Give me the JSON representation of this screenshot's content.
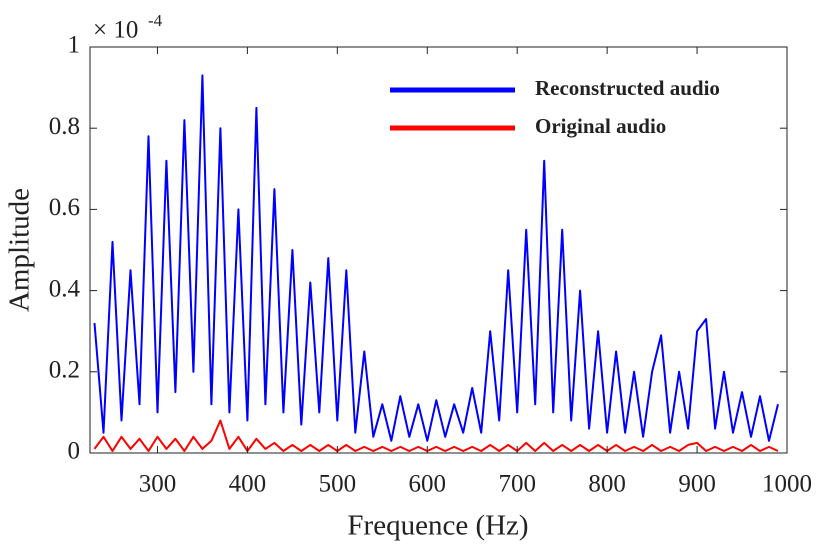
{
  "chart_data": {
    "type": "line",
    "xlabel": "Frequence (Hz)",
    "ylabel": "Amplitude",
    "y_multiplier": "× 10",
    "y_multiplier_exponent": "-4",
    "x": [
      230,
      240,
      250,
      260,
      270,
      280,
      290,
      300,
      310,
      320,
      330,
      340,
      350,
      360,
      370,
      380,
      390,
      400,
      410,
      420,
      430,
      440,
      450,
      460,
      470,
      480,
      490,
      500,
      510,
      520,
      530,
      540,
      550,
      560,
      570,
      580,
      590,
      600,
      610,
      620,
      630,
      640,
      650,
      660,
      670,
      680,
      690,
      700,
      710,
      720,
      730,
      740,
      750,
      760,
      770,
      780,
      790,
      800,
      810,
      820,
      830,
      840,
      850,
      860,
      870,
      880,
      890,
      900,
      910,
      920,
      930,
      940,
      950,
      960,
      970,
      980,
      990
    ],
    "series": [
      {
        "name": "Reconstructed audio",
        "color": "#0000ff",
        "values": [
          0.32,
          0.05,
          0.52,
          0.08,
          0.45,
          0.12,
          0.78,
          0.1,
          0.72,
          0.15,
          0.82,
          0.2,
          0.93,
          0.12,
          0.8,
          0.1,
          0.6,
          0.08,
          0.85,
          0.12,
          0.65,
          0.1,
          0.5,
          0.07,
          0.42,
          0.1,
          0.48,
          0.08,
          0.45,
          0.05,
          0.25,
          0.04,
          0.12,
          0.03,
          0.14,
          0.04,
          0.12,
          0.03,
          0.13,
          0.04,
          0.12,
          0.05,
          0.16,
          0.05,
          0.3,
          0.08,
          0.45,
          0.1,
          0.55,
          0.12,
          0.72,
          0.1,
          0.55,
          0.08,
          0.4,
          0.06,
          0.3,
          0.05,
          0.25,
          0.05,
          0.2,
          0.04,
          0.2,
          0.29,
          0.05,
          0.2,
          0.06,
          0.3,
          0.33,
          0.06,
          0.2,
          0.05,
          0.15,
          0.04,
          0.14,
          0.03,
          0.12
        ]
      },
      {
        "name": "Original audio",
        "color": "#ff0000",
        "values": [
          0.01,
          0.04,
          0.005,
          0.04,
          0.01,
          0.035,
          0.005,
          0.04,
          0.01,
          0.035,
          0.005,
          0.04,
          0.01,
          0.03,
          0.08,
          0.01,
          0.04,
          0.005,
          0.035,
          0.01,
          0.025,
          0.005,
          0.02,
          0.005,
          0.02,
          0.005,
          0.02,
          0.005,
          0.02,
          0.005,
          0.015,
          0.005,
          0.015,
          0.005,
          0.015,
          0.005,
          0.015,
          0.005,
          0.015,
          0.005,
          0.015,
          0.005,
          0.015,
          0.005,
          0.02,
          0.005,
          0.02,
          0.005,
          0.025,
          0.005,
          0.025,
          0.005,
          0.02,
          0.005,
          0.02,
          0.005,
          0.02,
          0.005,
          0.02,
          0.005,
          0.015,
          0.005,
          0.02,
          0.005,
          0.015,
          0.005,
          0.02,
          0.025,
          0.005,
          0.015,
          0.005,
          0.015,
          0.005,
          0.02,
          0.005,
          0.015,
          0.005
        ]
      }
    ],
    "xlim": [
      225,
      1000
    ],
    "ylim": [
      0,
      1
    ],
    "xticks": [
      300,
      400,
      500,
      600,
      700,
      800,
      900,
      1000
    ],
    "yticks": [
      0,
      0.2,
      0.4,
      0.6,
      0.8,
      1
    ],
    "grid": false,
    "legend": "upper right"
  }
}
